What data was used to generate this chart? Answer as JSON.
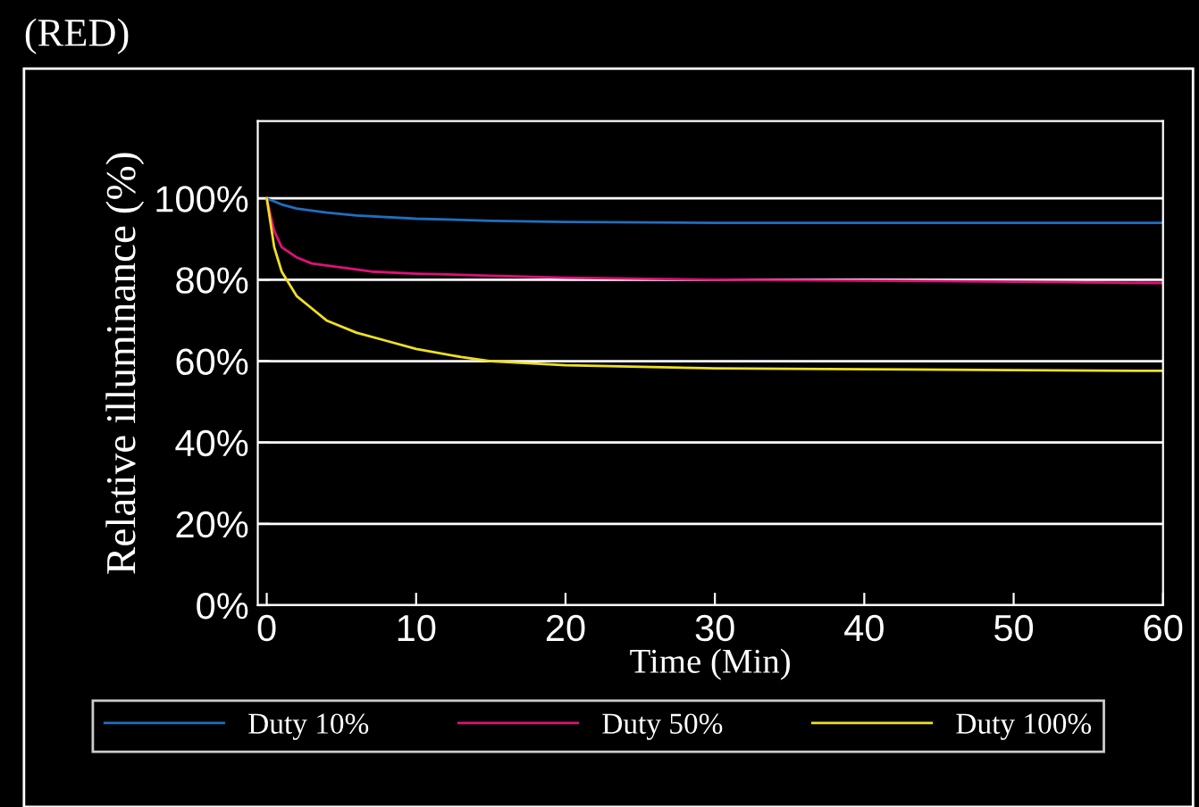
{
  "chart_data": {
    "type": "line",
    "title": "(RED)",
    "xlabel": "Time (Min)",
    "ylabel": "Relative illuminance (%)",
    "xlim": [
      -0.6,
      60
    ],
    "xticks": [
      0,
      10,
      20,
      30,
      40,
      50,
      60
    ],
    "ylim": [
      0,
      119
    ],
    "yticks": [
      {
        "value": 0,
        "label": "0%"
      },
      {
        "value": 20,
        "label": "20%"
      },
      {
        "value": 40,
        "label": "40%"
      },
      {
        "value": 60,
        "label": "60%"
      },
      {
        "value": 80,
        "label": "80%"
      },
      {
        "value": 100,
        "label": "100%"
      }
    ],
    "grid": "y",
    "legend": "bottom",
    "marker": "none",
    "line_style": "solid",
    "series": [
      {
        "name": "Duty 10%",
        "color": "#1f6fc0",
        "x": [
          0,
          1,
          2,
          4,
          6,
          10,
          15,
          20,
          30,
          40,
          50,
          60
        ],
        "values": [
          100,
          98.5,
          97.5,
          96.5,
          95.8,
          95,
          94.5,
          94.2,
          94,
          94,
          94,
          94
        ]
      },
      {
        "name": "Duty 50%",
        "color": "#e0107a",
        "x": [
          0,
          0.5,
          1,
          2,
          3,
          5,
          7,
          10,
          15,
          20,
          30,
          40,
          50,
          60
        ],
        "values": [
          100,
          92,
          88,
          85.5,
          84,
          83,
          82,
          81.5,
          81,
          80.5,
          80,
          79.8,
          79.5,
          79.2
        ]
      },
      {
        "name": "Duty 100%",
        "color": "#f0e020",
        "x": [
          0,
          0.5,
          1,
          2,
          3,
          4,
          6,
          8,
          10,
          13,
          15,
          20,
          30,
          40,
          50,
          60
        ],
        "values": [
          100,
          88,
          82,
          76,
          73,
          70,
          67,
          65,
          63,
          61,
          60,
          59,
          58.2,
          58,
          57.8,
          57.6
        ]
      }
    ]
  }
}
